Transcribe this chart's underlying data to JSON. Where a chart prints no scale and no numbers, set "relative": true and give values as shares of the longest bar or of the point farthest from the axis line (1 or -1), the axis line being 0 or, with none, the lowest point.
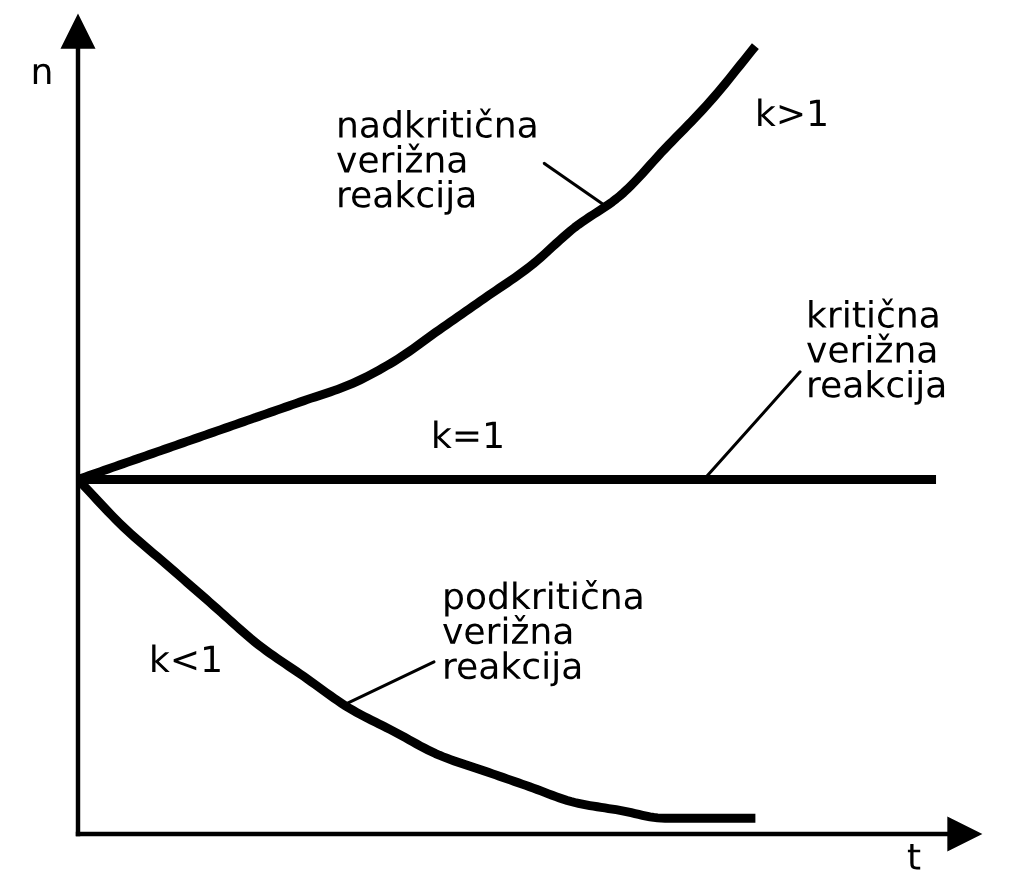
{
  "chart_data": {
    "type": "line",
    "relative": true,
    "xlabel": "t",
    "ylabel": "n",
    "categories": [
      null,
      null,
      null,
      null,
      null,
      null,
      null,
      null,
      null,
      null,
      null,
      null,
      null,
      null,
      null,
      null,
      null,
      null,
      null,
      null
    ],
    "series": [
      {
        "name": "k>1",
        "color": "#000000",
        "values": [
          0.45,
          0.47,
          0.49,
          0.51,
          0.53,
          0.55,
          0.57,
          0.6,
          0.64,
          0.68,
          0.72,
          0.77,
          0.81,
          0.87,
          0.93,
          1.0,
          null,
          null,
          null,
          null
        ]
      },
      {
        "name": "k=1",
        "color": "#000000",
        "values": [
          0.45,
          0.45,
          0.45,
          0.45,
          0.45,
          0.45,
          0.45,
          0.45,
          0.45,
          0.45,
          0.45,
          0.45,
          0.45,
          0.45,
          0.45,
          0.45,
          0.45,
          0.45,
          0.45,
          0.45
        ]
      },
      {
        "name": "k<1",
        "color": "#000000",
        "values": [
          0.45,
          0.39,
          0.34,
          0.29,
          0.24,
          0.2,
          0.16,
          0.13,
          0.1,
          0.08,
          0.06,
          0.04,
          0.03,
          0.02,
          0.02,
          0.02,
          null,
          null,
          null,
          null
        ]
      }
    ],
    "annotations": [
      "nadkritična\nverižna\nreakcija",
      "kritična\nverižna\nreakcija",
      "podkritična\nverižna\nreakcija"
    ]
  }
}
